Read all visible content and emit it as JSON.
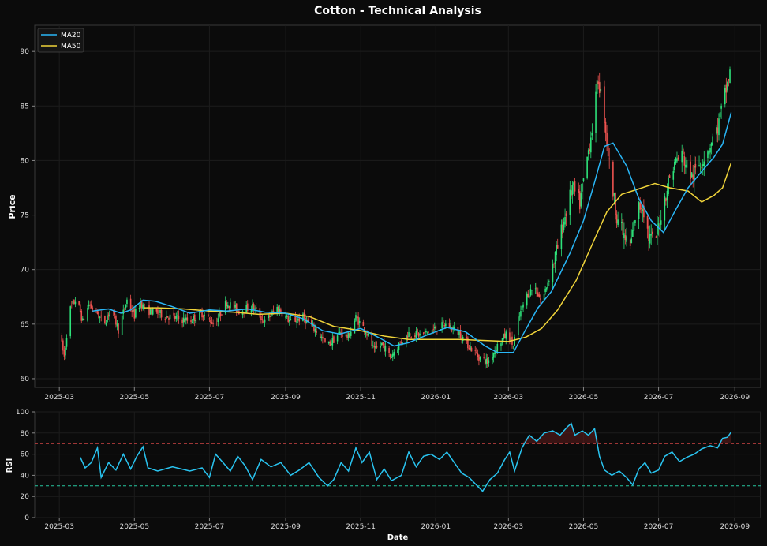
{
  "chart_data": [
    {
      "type": "candlestick",
      "title": "Cotton - Technical Analysis",
      "ylabel": "Price",
      "xlabel": "",
      "ylim": [
        59.2,
        92.4
      ],
      "yticks": [
        60,
        65,
        70,
        75,
        80,
        85,
        90
      ],
      "xlim": [
        "2025-02-09",
        "2026-09-22"
      ],
      "xticks": [
        "2025-03",
        "2025-05",
        "2025-07",
        "2025-09",
        "2025-11",
        "2026-01",
        "2026-03",
        "2026-05",
        "2026-07",
        "2026-09"
      ],
      "grid": true,
      "legend_position": "top-left",
      "colors": {
        "up": "#2ee27a",
        "down": "#ef5350",
        "ma20": "#29b6f6",
        "ma50": "#f0d43a"
      },
      "price_keypoints": [
        [
          "2025-03-01",
          64.2
        ],
        [
          "2025-03-05",
          62.0
        ],
        [
          "2025-03-09",
          66.2
        ],
        [
          "2025-03-15",
          67.4
        ],
        [
          "2025-03-20",
          65.2
        ],
        [
          "2025-03-25",
          66.8
        ],
        [
          "2025-04-01",
          66.0
        ],
        [
          "2025-04-06",
          65.0
        ],
        [
          "2025-04-12",
          66.5
        ],
        [
          "2025-04-18",
          64.5
        ],
        [
          "2025-04-25",
          67.2
        ],
        [
          "2025-05-01",
          65.8
        ],
        [
          "2025-05-06",
          67.0
        ],
        [
          "2025-05-10",
          66.3
        ],
        [
          "2025-05-20",
          66.0
        ],
        [
          "2025-06-01",
          65.6
        ],
        [
          "2025-06-15",
          65.3
        ],
        [
          "2025-06-25",
          66.0
        ],
        [
          "2025-07-05",
          65.0
        ],
        [
          "2025-07-15",
          67.0
        ],
        [
          "2025-07-25",
          66.2
        ],
        [
          "2025-08-05",
          66.6
        ],
        [
          "2025-08-15",
          65.2
        ],
        [
          "2025-08-25",
          66.5
        ],
        [
          "2025-09-05",
          65.2
        ],
        [
          "2025-09-15",
          65.6
        ],
        [
          "2025-09-25",
          64.5
        ],
        [
          "2025-10-05",
          63.0
        ],
        [
          "2025-10-15",
          64.2
        ],
        [
          "2025-10-22",
          63.8
        ],
        [
          "2025-10-28",
          65.6
        ],
        [
          "2025-11-05",
          64.4
        ],
        [
          "2025-11-12",
          62.5
        ],
        [
          "2025-11-18",
          63.2
        ],
        [
          "2025-11-25",
          62.0
        ],
        [
          "2025-12-01",
          63.0
        ],
        [
          "2025-12-10",
          64.2
        ],
        [
          "2025-12-20",
          64.0
        ],
        [
          "2026-01-01",
          64.6
        ],
        [
          "2026-01-10",
          65.0
        ],
        [
          "2026-01-20",
          64.2
        ],
        [
          "2026-01-28",
          63.0
        ],
        [
          "2026-02-05",
          62.0
        ],
        [
          "2026-02-12",
          61.5
        ],
        [
          "2026-02-20",
          63.0
        ],
        [
          "2026-02-28",
          64.2
        ],
        [
          "2026-03-05",
          63.0
        ],
        [
          "2026-03-08",
          65.0
        ],
        [
          "2026-03-15",
          67.5
        ],
        [
          "2026-03-22",
          68.5
        ],
        [
          "2026-03-28",
          67.0
        ],
        [
          "2026-04-05",
          70.0
        ],
        [
          "2026-04-10",
          72.0
        ],
        [
          "2026-04-15",
          74.5
        ],
        [
          "2026-04-22",
          77.5
        ],
        [
          "2026-04-28",
          76.0
        ],
        [
          "2026-05-03",
          79.5
        ],
        [
          "2026-05-08",
          83.0
        ],
        [
          "2026-05-13",
          87.5
        ],
        [
          "2026-05-18",
          84.0
        ],
        [
          "2026-05-23",
          78.5
        ],
        [
          "2026-05-28",
          75.0
        ],
        [
          "2026-06-03",
          73.0
        ],
        [
          "2026-06-08",
          72.0
        ],
        [
          "2026-06-13",
          75.5
        ],
        [
          "2026-06-18",
          76.0
        ],
        [
          "2026-06-23",
          73.0
        ],
        [
          "2026-06-28",
          72.5
        ],
        [
          "2026-07-05",
          76.0
        ],
        [
          "2026-07-10",
          78.5
        ],
        [
          "2026-07-15",
          80.0
        ],
        [
          "2026-07-20",
          80.5
        ],
        [
          "2026-07-28",
          78.5
        ],
        [
          "2026-08-05",
          80.0
        ],
        [
          "2026-08-12",
          81.5
        ],
        [
          "2026-08-18",
          83.0
        ],
        [
          "2026-08-24",
          86.0
        ],
        [
          "2026-08-28",
          88.0
        ],
        [
          "2026-08-29",
          90.0
        ]
      ],
      "series": [
        {
          "name": "MA20",
          "points": [
            [
              "2025-03-28",
              66.2
            ],
            [
              "2025-04-10",
              66.4
            ],
            [
              "2025-04-20",
              66.0
            ],
            [
              "2025-04-28",
              66.3
            ],
            [
              "2025-05-08",
              67.2
            ],
            [
              "2025-05-18",
              67.1
            ],
            [
              "2025-06-01",
              66.6
            ],
            [
              "2025-06-15",
              66.0
            ],
            [
              "2025-07-01",
              66.3
            ],
            [
              "2025-07-15",
              66.2
            ],
            [
              "2025-08-01",
              66.4
            ],
            [
              "2025-08-15",
              66.1
            ],
            [
              "2025-09-01",
              66.0
            ],
            [
              "2025-09-15",
              65.5
            ],
            [
              "2025-10-01",
              64.4
            ],
            [
              "2025-10-15",
              64.1
            ],
            [
              "2025-11-01",
              64.6
            ],
            [
              "2025-11-15",
              63.8
            ],
            [
              "2025-11-28",
              63.0
            ],
            [
              "2025-12-10",
              63.3
            ],
            [
              "2025-12-25",
              64.0
            ],
            [
              "2026-01-10",
              64.7
            ],
            [
              "2026-01-25",
              64.3
            ],
            [
              "2026-02-10",
              63.0
            ],
            [
              "2026-02-20",
              62.4
            ],
            [
              "2026-03-05",
              62.4
            ],
            [
              "2026-03-15",
              64.5
            ],
            [
              "2026-03-25",
              66.5
            ],
            [
              "2026-04-05",
              68.0
            ],
            [
              "2026-04-20",
              71.5
            ],
            [
              "2026-05-01",
              74.5
            ],
            [
              "2026-05-10",
              78.0
            ],
            [
              "2026-05-18",
              81.3
            ],
            [
              "2026-05-25",
              81.6
            ],
            [
              "2026-06-05",
              79.5
            ],
            [
              "2026-06-15",
              76.5
            ],
            [
              "2026-06-25",
              74.5
            ],
            [
              "2026-07-05",
              73.4
            ],
            [
              "2026-07-15",
              75.5
            ],
            [
              "2026-07-25",
              77.5
            ],
            [
              "2026-08-05",
              79.0
            ],
            [
              "2026-08-15",
              80.3
            ],
            [
              "2026-08-22",
              81.5
            ],
            [
              "2026-08-29",
              84.4
            ]
          ]
        },
        {
          "name": "MA50",
          "points": [
            [
              "2025-05-09",
              66.5
            ],
            [
              "2025-05-20",
              66.5
            ],
            [
              "2025-06-10",
              66.4
            ],
            [
              "2025-07-01",
              66.2
            ],
            [
              "2025-07-20",
              66.1
            ],
            [
              "2025-08-10",
              65.9
            ],
            [
              "2025-09-01",
              66.0
            ],
            [
              "2025-09-20",
              65.7
            ],
            [
              "2025-10-10",
              64.8
            ],
            [
              "2025-11-01",
              64.4
            ],
            [
              "2025-11-20",
              63.9
            ],
            [
              "2025-12-10",
              63.6
            ],
            [
              "2026-01-01",
              63.6
            ],
            [
              "2026-01-20",
              63.6
            ],
            [
              "2026-02-10",
              63.5
            ],
            [
              "2026-03-01",
              63.4
            ],
            [
              "2026-03-15",
              63.8
            ],
            [
              "2026-03-28",
              64.6
            ],
            [
              "2026-04-10",
              66.3
            ],
            [
              "2026-04-25",
              69.0
            ],
            [
              "2026-05-10",
              72.8
            ],
            [
              "2026-05-20",
              75.3
            ],
            [
              "2026-06-01",
              76.9
            ],
            [
              "2026-06-15",
              77.4
            ],
            [
              "2026-06-28",
              77.9
            ],
            [
              "2026-07-10",
              77.5
            ],
            [
              "2026-07-25",
              77.2
            ],
            [
              "2026-08-05",
              76.2
            ],
            [
              "2026-08-15",
              76.8
            ],
            [
              "2026-08-22",
              77.5
            ],
            [
              "2026-08-29",
              79.8
            ]
          ]
        }
      ]
    },
    {
      "type": "line",
      "title": "",
      "ylabel": "RSI",
      "xlabel": "Date",
      "ylim": [
        0,
        100
      ],
      "yticks": [
        0,
        20,
        40,
        60,
        80,
        100
      ],
      "xlim": [
        "2025-02-09",
        "2026-09-22"
      ],
      "xticks": [
        "2025-03",
        "2025-05",
        "2025-07",
        "2025-09",
        "2025-11",
        "2026-01",
        "2026-03",
        "2026-05",
        "2026-07",
        "2026-09"
      ],
      "grid": true,
      "overbought": 70,
      "oversold": 30,
      "colors": {
        "line": "#29c4f0",
        "overbought": "#d04545",
        "oversold": "#26c6a0"
      },
      "series": [
        {
          "name": "",
          "points": [
            [
              "2025-03-18",
              57
            ],
            [
              "2025-03-22",
              47
            ],
            [
              "2025-03-27",
              52
            ],
            [
              "2025-04-01",
              66
            ],
            [
              "2025-04-04",
              38
            ],
            [
              "2025-04-10",
              52
            ],
            [
              "2025-04-16",
              45
            ],
            [
              "2025-04-22",
              60
            ],
            [
              "2025-04-28",
              46
            ],
            [
              "2025-05-03",
              58
            ],
            [
              "2025-05-08",
              67
            ],
            [
              "2025-05-12",
              47
            ],
            [
              "2025-05-20",
              44
            ],
            [
              "2025-06-01",
              48
            ],
            [
              "2025-06-15",
              44
            ],
            [
              "2025-06-25",
              47
            ],
            [
              "2025-07-01",
              38
            ],
            [
              "2025-07-06",
              60
            ],
            [
              "2025-07-12",
              52
            ],
            [
              "2025-07-18",
              44
            ],
            [
              "2025-07-24",
              58
            ],
            [
              "2025-07-30",
              49
            ],
            [
              "2025-08-05",
              36
            ],
            [
              "2025-08-12",
              55
            ],
            [
              "2025-08-20",
              48
            ],
            [
              "2025-08-28",
              52
            ],
            [
              "2025-09-05",
              40
            ],
            [
              "2025-09-12",
              45
            ],
            [
              "2025-09-20",
              52
            ],
            [
              "2025-09-28",
              38
            ],
            [
              "2025-10-05",
              30
            ],
            [
              "2025-10-10",
              36
            ],
            [
              "2025-10-16",
              52
            ],
            [
              "2025-10-22",
              44
            ],
            [
              "2025-10-28",
              66
            ],
            [
              "2025-11-02",
              52
            ],
            [
              "2025-11-08",
              62
            ],
            [
              "2025-11-14",
              36
            ],
            [
              "2025-11-20",
              46
            ],
            [
              "2025-11-26",
              35
            ],
            [
              "2025-12-04",
              40
            ],
            [
              "2025-12-10",
              62
            ],
            [
              "2025-12-16",
              48
            ],
            [
              "2025-12-22",
              58
            ],
            [
              "2025-12-28",
              60
            ],
            [
              "2026-01-04",
              55
            ],
            [
              "2026-01-10",
              62
            ],
            [
              "2026-01-16",
              52
            ],
            [
              "2026-01-22",
              42
            ],
            [
              "2026-01-28",
              38
            ],
            [
              "2026-02-02",
              32
            ],
            [
              "2026-02-08",
              25
            ],
            [
              "2026-02-14",
              36
            ],
            [
              "2026-02-20",
              42
            ],
            [
              "2026-02-26",
              55
            ],
            [
              "2026-03-02",
              62
            ],
            [
              "2026-03-06",
              44
            ],
            [
              "2026-03-12",
              66
            ],
            [
              "2026-03-18",
              78
            ],
            [
              "2026-03-24",
              72
            ],
            [
              "2026-03-30",
              80
            ],
            [
              "2026-04-06",
              82
            ],
            [
              "2026-04-12",
              78
            ],
            [
              "2026-04-18",
              86
            ],
            [
              "2026-04-21",
              89
            ],
            [
              "2026-04-24",
              78
            ],
            [
              "2026-04-30",
              82
            ],
            [
              "2026-05-05",
              78
            ],
            [
              "2026-05-10",
              84
            ],
            [
              "2026-05-14",
              58
            ],
            [
              "2026-05-18",
              45
            ],
            [
              "2026-05-24",
              40
            ],
            [
              "2026-05-30",
              44
            ],
            [
              "2026-06-05",
              38
            ],
            [
              "2026-06-10",
              31
            ],
            [
              "2026-06-15",
              46
            ],
            [
              "2026-06-20",
              52
            ],
            [
              "2026-06-25",
              42
            ],
            [
              "2026-07-01",
              45
            ],
            [
              "2026-07-06",
              58
            ],
            [
              "2026-07-12",
              62
            ],
            [
              "2026-07-18",
              53
            ],
            [
              "2026-07-24",
              57
            ],
            [
              "2026-07-30",
              60
            ],
            [
              "2026-08-05",
              65
            ],
            [
              "2026-08-12",
              68
            ],
            [
              "2026-08-18",
              66
            ],
            [
              "2026-08-22",
              75
            ],
            [
              "2026-08-26",
              76
            ],
            [
              "2026-08-29",
              81
            ]
          ]
        }
      ]
    }
  ]
}
